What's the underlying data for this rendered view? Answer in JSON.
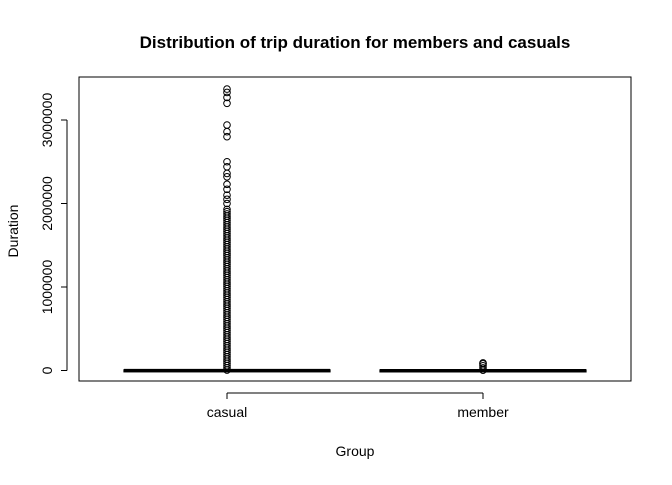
{
  "chart_data": {
    "type": "boxplot",
    "title": "Distribution of trip duration for members and casuals",
    "xlabel": "Group",
    "ylabel": "Duration",
    "categories": [
      "casual",
      "member"
    ],
    "y_ticks": [
      0,
      1000000,
      2000000,
      3000000
    ],
    "y_tick_labels": [
      "0",
      "1000000",
      "2000000",
      "3000000"
    ],
    "ylim": [
      -100000,
      3450000
    ],
    "grid": false,
    "legend": "none",
    "series": [
      {
        "values_summary": {
          "min": 0,
          "q1": 500,
          "median": 1000,
          "q3": 2000,
          "max": 4000
        },
        "outliers_dense_range": [
          5000,
          1950000
        ],
        "outliers_sparse": [
          2000000,
          2050000,
          2100000,
          2170000,
          2230000,
          2320000,
          2360000,
          2440000,
          2500000,
          2800000,
          2860000,
          2940000,
          3200000,
          3270000,
          3330000,
          3370000
        ]
      },
      {
        "values_summary": {
          "min": 0,
          "q1": 400,
          "median": 700,
          "q3": 1300,
          "max": 3000
        },
        "outliers_dense_range": [
          4000,
          75000
        ],
        "outliers_sparse": [
          80000,
          90000
        ]
      }
    ]
  }
}
